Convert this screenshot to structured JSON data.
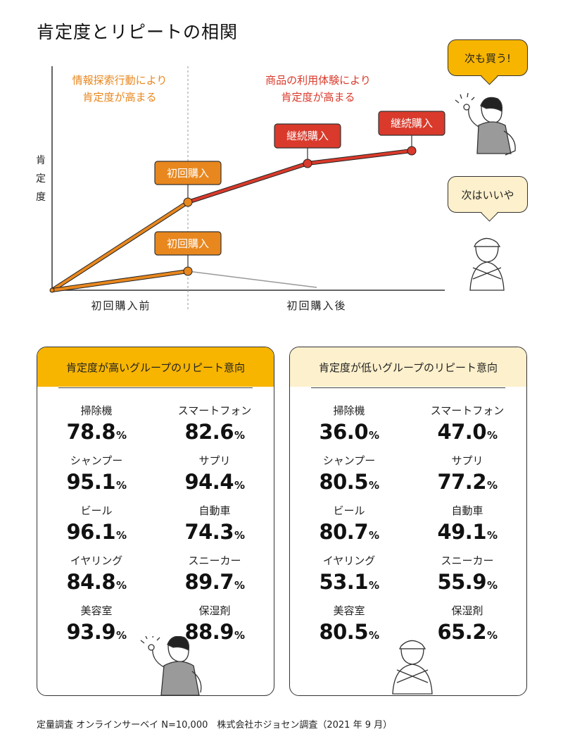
{
  "title": "肯定度とリピートの相関",
  "chart_data": {
    "type": "line",
    "ylabel": "肯定度",
    "x_categories": [
      "初回購入前",
      "初回購入後"
    ],
    "phase_labels": {
      "left": [
        "情報探索行動により",
        "肯定度が高まる"
      ],
      "right": [
        "商品の利用体験により",
        "肯定度が高まる"
      ]
    },
    "callouts": {
      "first_purchase_high": "初回購入",
      "first_purchase_low": "初回購入",
      "continued_1": "継続購入",
      "continued_2": "継続購入"
    },
    "series": [
      {
        "name": "",
        "segments": [
          "orange",
          "red"
        ],
        "color_orange": "#e8871e",
        "color_red": "#d93a2b"
      },
      {
        "name": "",
        "segments": [
          "orange",
          "gray"
        ],
        "color_orange": "#e8871e",
        "color_gray": "#999999"
      }
    ]
  },
  "bubbles": {
    "yes": "次も買う!",
    "no": "次はいいや"
  },
  "panels": [
    {
      "heading": "肯定度が高いグループのリピート意向",
      "items": [
        {
          "category": "掃除機",
          "value": "78.8"
        },
        {
          "category": "スマートフォン",
          "value": "82.6"
        },
        {
          "category": "シャンプー",
          "value": "95.1"
        },
        {
          "category": "サプリ",
          "value": "94.4"
        },
        {
          "category": "ビール",
          "value": "96.1"
        },
        {
          "category": "自動車",
          "value": "74.3"
        },
        {
          "category": "イヤリング",
          "value": "84.8"
        },
        {
          "category": "スニーカー",
          "value": "89.7"
        },
        {
          "category": "美容室",
          "value": "93.9"
        },
        {
          "category": "保湿剤",
          "value": "88.9"
        }
      ]
    },
    {
      "heading": "肯定度が低いグループのリピート意向",
      "items": [
        {
          "category": "掃除機",
          "value": "36.0"
        },
        {
          "category": "スマートフォン",
          "value": "47.0"
        },
        {
          "category": "シャンプー",
          "value": "80.5"
        },
        {
          "category": "サプリ",
          "value": "77.2"
        },
        {
          "category": "ビール",
          "value": "80.7"
        },
        {
          "category": "自動車",
          "value": "49.1"
        },
        {
          "category": "イヤリング",
          "value": "53.1"
        },
        {
          "category": "スニーカー",
          "value": "55.9"
        },
        {
          "category": "美容室",
          "value": "80.5"
        },
        {
          "category": "保湿剤",
          "value": "65.2"
        }
      ]
    }
  ],
  "percent_sign": "%",
  "footer": "定量調査 オンラインサーベイ N=10,000　株式会社ホジョセン調査（2021 年 9 月）",
  "colors": {
    "accent": "#f7b500",
    "accent_light": "#fdf0cc",
    "orange": "#e8871e",
    "red": "#d93a2b"
  }
}
